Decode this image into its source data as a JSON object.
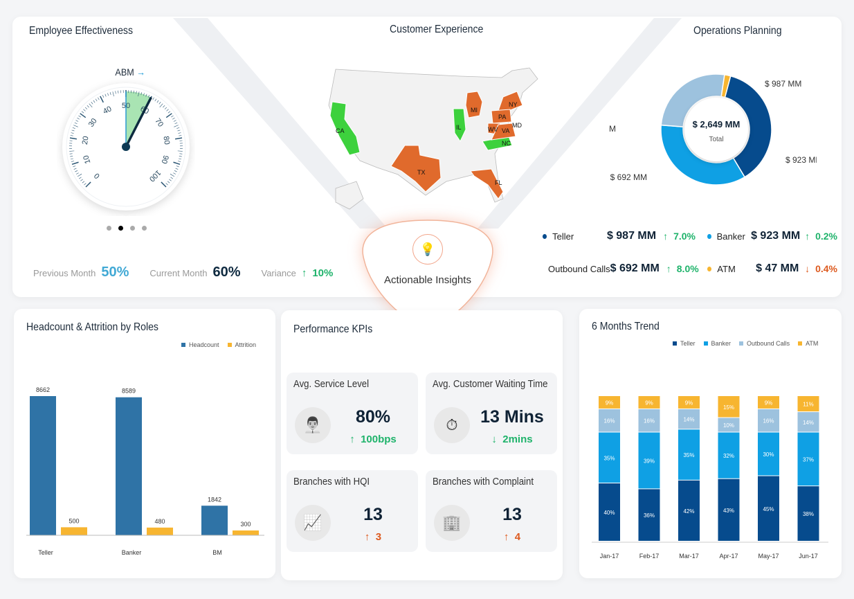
{
  "employee": {
    "title": "Employee Effectiveness",
    "gauge_label": "ABM",
    "gauge_value": 60,
    "gauge_prev": 50,
    "gauge_ticks": [
      "0",
      "10",
      "20",
      "30",
      "40",
      "50",
      "60",
      "70",
      "80",
      "90",
      "100"
    ],
    "prev_label": "Previous Month",
    "prev_value": "50%",
    "curr_label": "Current Month",
    "curr_value": "60%",
    "var_label": "Variance",
    "var_value": "10%",
    "pager_active": 1
  },
  "customer": {
    "title": "Customer Experience",
    "states_red": [
      "MI",
      "NY",
      "PA",
      "MD",
      "WV",
      "VA",
      "TX",
      "FL"
    ],
    "states_green": [
      "CA",
      "IL",
      "NC"
    ]
  },
  "insights": {
    "label": "Actionable Insights"
  },
  "operations": {
    "title": "Operations Planning",
    "total_value": "$ 2,649 MM",
    "total_label": "Total",
    "slices": [
      {
        "name": "Teller",
        "value": 987,
        "label": "$ 987 MM",
        "color": "#064b8d",
        "change": "7.0%",
        "dir": "up"
      },
      {
        "name": "Banker",
        "value": 923,
        "label": "$ 923 MM",
        "color": "#0fa0e4",
        "change": "0.2%",
        "dir": "up"
      },
      {
        "name": "Outbound Calls",
        "value": 692,
        "label": "$ 692 MM",
        "color": "#9dc2de",
        "change": "8.0%",
        "dir": "up"
      },
      {
        "name": "ATM",
        "value": 47,
        "label": "$ 47 MM",
        "color": "#f7b530",
        "change": "0.4%",
        "dir": "down"
      }
    ]
  },
  "headcount": {
    "title": "Headcount & Attrition by Roles"
  },
  "kpis": {
    "title": "Performance KPIs",
    "items": [
      {
        "title": "Avg. Service Level",
        "value": "80%",
        "delta": "100bps",
        "dir": "up",
        "tone": "g"
      },
      {
        "title": "Avg. Customer Waiting Time",
        "value": "13 Mins",
        "delta": "2mins",
        "dir": "down",
        "tone": "g"
      },
      {
        "title": "Branches with HQI",
        "value": "13",
        "delta": "3",
        "dir": "up",
        "tone": "o"
      },
      {
        "title": "Branches with Complaint",
        "value": "13",
        "delta": "4",
        "dir": "up",
        "tone": "o"
      }
    ]
  },
  "trend": {
    "title": "6 Months Trend"
  },
  "chart_data": [
    {
      "type": "bar",
      "title": "Headcount & Attrition by Roles",
      "categories": [
        "Teller",
        "Banker",
        "BM"
      ],
      "series": [
        {
          "name": "Headcount",
          "color": "#2f73a6",
          "values": [
            8662,
            8589,
            1842
          ]
        },
        {
          "name": "Attrition",
          "color": "#f7b530",
          "values": [
            500,
            480,
            300
          ]
        }
      ],
      "ylim": [
        0,
        8662
      ]
    },
    {
      "type": "bar",
      "stacked": true,
      "title": "6 Months Trend",
      "categories": [
        "Jan-17",
        "Feb-17",
        "Mar-17",
        "Apr-17",
        "May-17",
        "Jun-17"
      ],
      "series": [
        {
          "name": "Teller",
          "color": "#064b8d",
          "values": [
            40,
            36,
            42,
            43,
            45,
            38
          ]
        },
        {
          "name": "Banker",
          "color": "#0fa0e4",
          "values": [
            35,
            39,
            35,
            32,
            30,
            37
          ]
        },
        {
          "name": "Outbound Calls",
          "color": "#9dc2de",
          "values": [
            16,
            16,
            14,
            10,
            16,
            14
          ]
        },
        {
          "name": "ATM",
          "color": "#f7b530",
          "values": [
            9,
            9,
            9,
            15,
            9,
            11
          ]
        }
      ],
      "unit": "%"
    }
  ]
}
